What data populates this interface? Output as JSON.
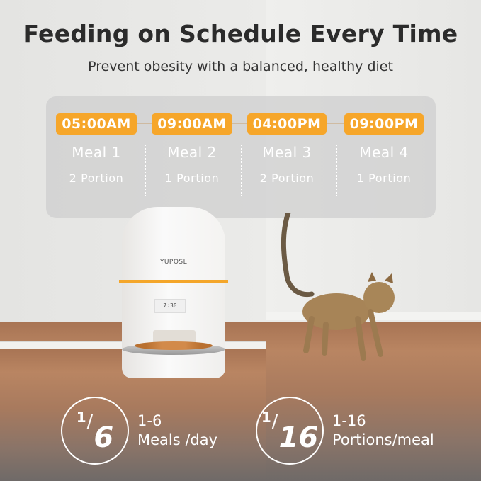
{
  "header": {
    "title": "Feeding on Schedule Every Time",
    "subtitle": "Prevent obesity with a balanced, healthy diet"
  },
  "schedule": [
    {
      "time": "05:00AM",
      "meal": "Meal 1",
      "portion": "2 Portion"
    },
    {
      "time": "09:00AM",
      "meal": "Meal 2",
      "portion": "1 Portion"
    },
    {
      "time": "04:00PM",
      "meal": "Meal 3",
      "portion": "2 Portion"
    },
    {
      "time": "09:00PM",
      "meal": "Meal 4",
      "portion": "1 Portion"
    }
  ],
  "product": {
    "brand": "YUPOSL",
    "display": "7:30"
  },
  "stats": [
    {
      "numerator": "1",
      "denominator": "6",
      "range": "1-6",
      "label": "Meals /day"
    },
    {
      "numerator": "1",
      "denominator": "16",
      "range": "1-16",
      "label": "Portions/meal"
    }
  ],
  "colors": {
    "accent": "#f6a62a"
  }
}
